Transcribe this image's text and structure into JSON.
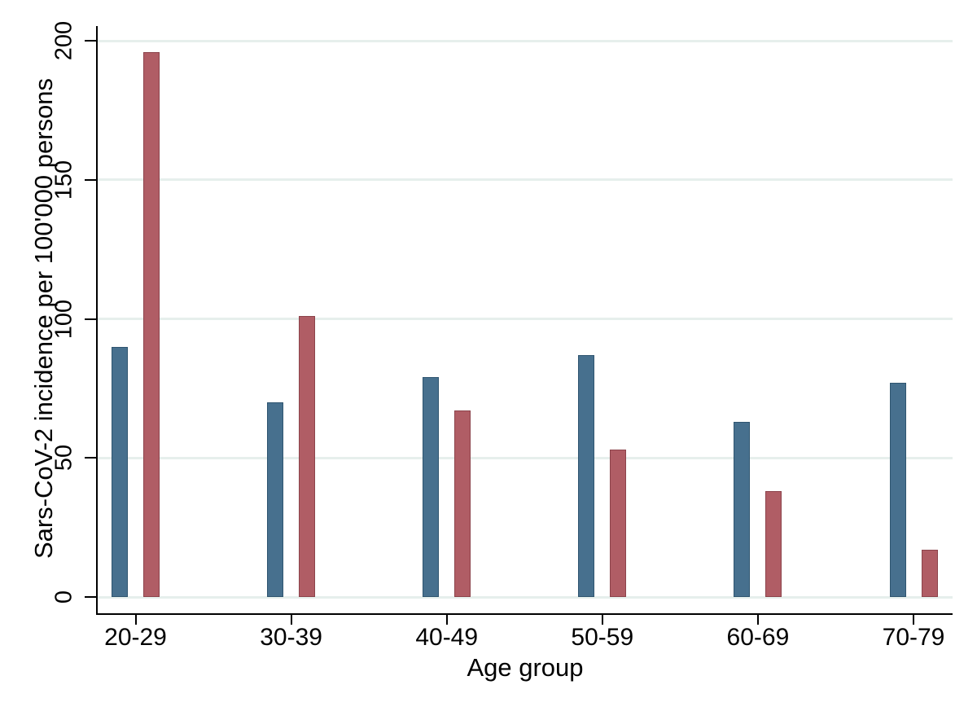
{
  "figure": {
    "background_color": "#ffffff",
    "axis_color": "#000000",
    "gridline_color": "#e6efec"
  },
  "chart_data": {
    "type": "bar",
    "title": "",
    "xlabel": "Age group",
    "ylabel": "Sars-CoV-2 incidence per 100'000 persons",
    "categories": [
      "20-29",
      "30-39",
      "40-49",
      "50-59",
      "60-69",
      "70-79"
    ],
    "series": [
      {
        "name": "blue-series",
        "fill_color": "#47708e",
        "border_color": "#2f5570",
        "values": [
          90,
          70,
          79,
          87,
          63,
          77
        ]
      },
      {
        "name": "red-series",
        "fill_color": "#b05d65",
        "border_color": "#8c434b",
        "values": [
          196,
          101,
          67,
          53,
          38,
          17
        ]
      }
    ],
    "yticks": [
      0,
      50,
      100,
      150,
      200
    ],
    "ylim": [
      0,
      200
    ],
    "grid": true,
    "legend_position": "none"
  }
}
